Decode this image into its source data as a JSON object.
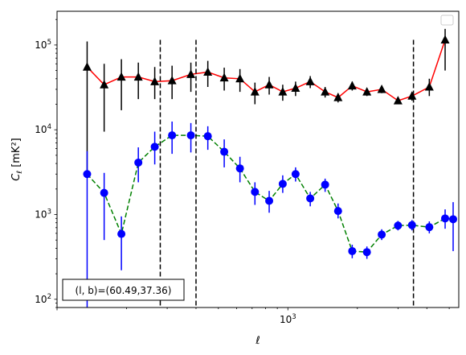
{
  "chart_data": {
    "type": "scatter",
    "xscale": "log",
    "yscale": "log",
    "xlim": [
      100,
      5500
    ],
    "ylim": [
      80,
      250000
    ],
    "xlabel": "ℓ",
    "ylabel_main": "C",
    "ylabel_sub": "ℓ",
    "ylabel_units": "[mK²]",
    "x_major_ticks": [
      {
        "value": 1000,
        "base": "10",
        "exp": "3"
      }
    ],
    "y_major_ticks": [
      {
        "value": 100,
        "base": "10",
        "exp": "2"
      },
      {
        "value": 1000,
        "base": "10",
        "exp": "3"
      },
      {
        "value": 10000,
        "base": "10",
        "exp": "4"
      },
      {
        "value": 100000,
        "base": "10",
        "exp": "5"
      }
    ],
    "vlines": [
      {
        "x": 280
      },
      {
        "x": 400
      },
      {
        "x": 3500
      }
    ],
    "annotation": "(l, b)=(60.49,37.36)",
    "legend_position": "upper right",
    "series": [
      {
        "marker": "triangle",
        "marker_color": "#000000",
        "line_color": "#ff0000",
        "line_style": "solid",
        "points": [
          {
            "x": 135,
            "y": 55000,
            "lo": 3000,
            "hi": 110000
          },
          {
            "x": 160,
            "y": 34000,
            "lo": 9500,
            "hi": 60000
          },
          {
            "x": 190,
            "y": 42000,
            "lo": 17000,
            "hi": 68000
          },
          {
            "x": 225,
            "y": 42000,
            "lo": 23000,
            "hi": 62000
          },
          {
            "x": 265,
            "y": 37000,
            "lo": 23000,
            "hi": 55000
          },
          {
            "x": 315,
            "y": 38000,
            "lo": 23000,
            "hi": 57000
          },
          {
            "x": 380,
            "y": 45000,
            "lo": 28000,
            "hi": 62000
          },
          {
            "x": 450,
            "y": 48000,
            "lo": 32000,
            "hi": 65000
          },
          {
            "x": 530,
            "y": 41000,
            "lo": 29000,
            "hi": 54000
          },
          {
            "x": 620,
            "y": 40000,
            "lo": 28000,
            "hi": 52000
          },
          {
            "x": 720,
            "y": 28000,
            "lo": 20000,
            "hi": 36000
          },
          {
            "x": 830,
            "y": 34000,
            "lo": 26000,
            "hi": 42000
          },
          {
            "x": 950,
            "y": 28000,
            "lo": 22000,
            "hi": 34000
          },
          {
            "x": 1080,
            "y": 31000,
            "lo": 25000,
            "hi": 37000
          },
          {
            "x": 1250,
            "y": 37000,
            "lo": 31000,
            "hi": 43000
          },
          {
            "x": 1450,
            "y": 28000,
            "lo": 24000,
            "hi": 32000
          },
          {
            "x": 1650,
            "y": 24000,
            "lo": 21000,
            "hi": 27000
          },
          {
            "x": 1900,
            "y": 33000,
            "lo": 29000,
            "hi": 37000
          },
          {
            "x": 2200,
            "y": 28000,
            "lo": 25000,
            "hi": 31000
          },
          {
            "x": 2550,
            "y": 30000,
            "lo": 27000,
            "hi": 33000
          },
          {
            "x": 3000,
            "y": 22000,
            "lo": 20000,
            "hi": 24000
          },
          {
            "x": 3450,
            "y": 25000,
            "lo": 22000,
            "hi": 28000
          },
          {
            "x": 4100,
            "y": 32000,
            "lo": 25000,
            "hi": 40000
          },
          {
            "x": 4800,
            "y": 115000,
            "lo": 50000,
            "hi": 155000
          }
        ]
      },
      {
        "marker": "circle",
        "marker_color": "#0000ff",
        "line_color": "#008000",
        "line_style": "dashed",
        "points": [
          {
            "x": 135,
            "y": 3000,
            "lo": 80,
            "hi": 5600
          },
          {
            "x": 160,
            "y": 1800,
            "lo": 500,
            "hi": 3100
          },
          {
            "x": 190,
            "y": 590,
            "lo": 220,
            "hi": 950
          },
          {
            "x": 225,
            "y": 4100,
            "lo": 2400,
            "hi": 6200
          },
          {
            "x": 265,
            "y": 6300,
            "lo": 3900,
            "hi": 9500
          },
          {
            "x": 315,
            "y": 8600,
            "lo": 5200,
            "hi": 12500
          },
          {
            "x": 380,
            "y": 8600,
            "lo": 5400,
            "hi": 12000
          },
          {
            "x": 450,
            "y": 8400,
            "lo": 5800,
            "hi": 11000
          },
          {
            "x": 530,
            "y": 5500,
            "lo": 3600,
            "hi": 7700
          },
          {
            "x": 620,
            "y": 3500,
            "lo": 2400,
            "hi": 4800
          },
          {
            "x": 720,
            "y": 1850,
            "lo": 1300,
            "hi": 2400
          },
          {
            "x": 830,
            "y": 1450,
            "lo": 1050,
            "hi": 1900
          },
          {
            "x": 950,
            "y": 2300,
            "lo": 1800,
            "hi": 2900
          },
          {
            "x": 1080,
            "y": 3000,
            "lo": 2450,
            "hi": 3600
          },
          {
            "x": 1250,
            "y": 1550,
            "lo": 1250,
            "hi": 1850
          },
          {
            "x": 1450,
            "y": 2250,
            "lo": 1850,
            "hi": 2650
          },
          {
            "x": 1650,
            "y": 1100,
            "lo": 900,
            "hi": 1350
          },
          {
            "x": 1900,
            "y": 370,
            "lo": 305,
            "hi": 440
          },
          {
            "x": 2200,
            "y": 360,
            "lo": 300,
            "hi": 420
          },
          {
            "x": 2550,
            "y": 580,
            "lo": 500,
            "hi": 670
          },
          {
            "x": 3000,
            "y": 740,
            "lo": 650,
            "hi": 840
          },
          {
            "x": 3450,
            "y": 750,
            "lo": 650,
            "hi": 860
          },
          {
            "x": 4100,
            "y": 710,
            "lo": 600,
            "hi": 830
          },
          {
            "x": 4800,
            "y": 900,
            "lo": 680,
            "hi": 1150
          },
          {
            "x": 5200,
            "y": 880,
            "lo": 370,
            "hi": 1400
          }
        ]
      }
    ]
  }
}
